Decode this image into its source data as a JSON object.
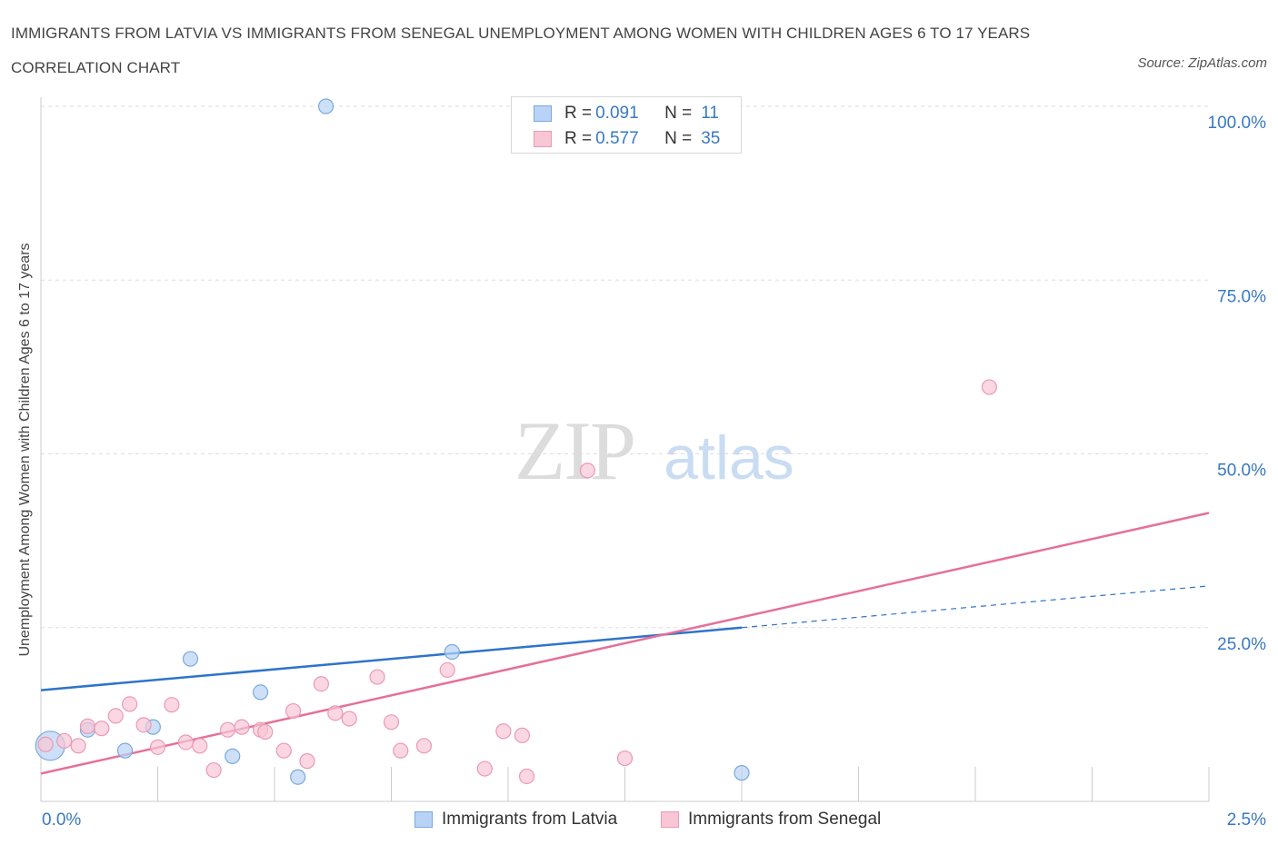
{
  "header": {
    "title": "IMMIGRANTS FROM LATVIA VS IMMIGRANTS FROM SENEGAL UNEMPLOYMENT AMONG WOMEN WITH CHILDREN AGES 6 TO 17 YEARS CORRELATION CHART",
    "source": "Source: ZipAtlas.com"
  },
  "watermark": {
    "zip": "ZIP",
    "atlas": "atlas"
  },
  "legend": {
    "latvia": {
      "r_label": "R =",
      "r_value": "0.091",
      "n_label": "N =",
      "n_value": "11"
    },
    "senegal": {
      "r_label": "R =",
      "r_value": "0.577",
      "n_label": "N =",
      "n_value": "35"
    }
  },
  "bottom_legend": {
    "latvia": "Immigrants from Latvia",
    "senegal": "Immigrants from Senegal"
  },
  "colors": {
    "latvia_fill": "#b8d3f5",
    "latvia_stroke": "#7aa8e0",
    "latvia_line": "#2f74c8",
    "senegal_fill": "#f8c6d5",
    "senegal_stroke": "#eb9ab3",
    "senegal_line": "#e5709a",
    "tick_text": "#3a78c4",
    "grid": "#dddddd"
  },
  "chart_data": {
    "type": "scatter",
    "title": "IMMIGRANTS FROM LATVIA VS IMMIGRANTS FROM SENEGAL UNEMPLOYMENT AMONG WOMEN WITH CHILDREN AGES 6 TO 17 YEARS CORRELATION CHART",
    "xlabel": "",
    "ylabel": "Unemployment Among Women with Children Ages 6 to 17 years",
    "xlim": [
      0,
      2.5
    ],
    "ylim": [
      0,
      100
    ],
    "x_tick_labels": [
      "0.0%",
      "2.5%"
    ],
    "y_tick_labels": [
      "100.0%",
      "75.0%",
      "50.0%",
      "25.0%"
    ],
    "y_ticks": [
      100,
      75,
      50,
      25
    ],
    "grid": true,
    "legend_position": "top-center",
    "series": [
      {
        "name": "Immigrants from Latvia",
        "r": 0.091,
        "n": 11,
        "points": [
          {
            "x": 0.02,
            "y": 8.0,
            "big": true
          },
          {
            "x": 0.1,
            "y": 10.3
          },
          {
            "x": 0.18,
            "y": 7.3
          },
          {
            "x": 0.24,
            "y": 10.7
          },
          {
            "x": 0.32,
            "y": 20.5
          },
          {
            "x": 0.41,
            "y": 6.5
          },
          {
            "x": 0.47,
            "y": 15.7
          },
          {
            "x": 0.55,
            "y": 3.5
          },
          {
            "x": 0.61,
            "y": 100.0
          },
          {
            "x": 0.88,
            "y": 21.5
          },
          {
            "x": 1.5,
            "y": 4.1
          }
        ],
        "trend": {
          "x0": 0.0,
          "y0": 16.0,
          "x1": 1.5,
          "y1": 25.0,
          "dash_x1": 2.5,
          "dash_y1": 31.0
        }
      },
      {
        "name": "Immigrants from Senegal",
        "r": 0.577,
        "n": 35,
        "points": [
          {
            "x": 0.01,
            "y": 8.2
          },
          {
            "x": 0.05,
            "y": 8.7
          },
          {
            "x": 0.08,
            "y": 8.0
          },
          {
            "x": 0.1,
            "y": 10.8
          },
          {
            "x": 0.13,
            "y": 10.5
          },
          {
            "x": 0.16,
            "y": 12.3
          },
          {
            "x": 0.19,
            "y": 14.0
          },
          {
            "x": 0.22,
            "y": 11.0
          },
          {
            "x": 0.25,
            "y": 7.8
          },
          {
            "x": 0.28,
            "y": 13.9
          },
          {
            "x": 0.31,
            "y": 8.5
          },
          {
            "x": 0.34,
            "y": 8.0
          },
          {
            "x": 0.37,
            "y": 4.5
          },
          {
            "x": 0.4,
            "y": 10.3
          },
          {
            "x": 0.43,
            "y": 10.7
          },
          {
            "x": 0.47,
            "y": 10.3
          },
          {
            "x": 0.48,
            "y": 10.0
          },
          {
            "x": 0.52,
            "y": 7.3
          },
          {
            "x": 0.54,
            "y": 13.0
          },
          {
            "x": 0.57,
            "y": 5.8
          },
          {
            "x": 0.6,
            "y": 16.9
          },
          {
            "x": 0.63,
            "y": 12.7
          },
          {
            "x": 0.66,
            "y": 11.9
          },
          {
            "x": 0.72,
            "y": 17.9
          },
          {
            "x": 0.75,
            "y": 11.4
          },
          {
            "x": 0.77,
            "y": 7.3
          },
          {
            "x": 0.82,
            "y": 8.0
          },
          {
            "x": 0.87,
            "y": 18.9
          },
          {
            "x": 0.95,
            "y": 4.7
          },
          {
            "x": 0.99,
            "y": 10.1
          },
          {
            "x": 1.03,
            "y": 9.5
          },
          {
            "x": 1.04,
            "y": 3.6
          },
          {
            "x": 1.17,
            "y": 47.6
          },
          {
            "x": 1.25,
            "y": 6.2
          },
          {
            "x": 2.03,
            "y": 59.6
          }
        ],
        "trend": {
          "x0": 0.0,
          "y0": 4.0,
          "x1": 2.5,
          "y1": 41.5
        }
      }
    ]
  }
}
